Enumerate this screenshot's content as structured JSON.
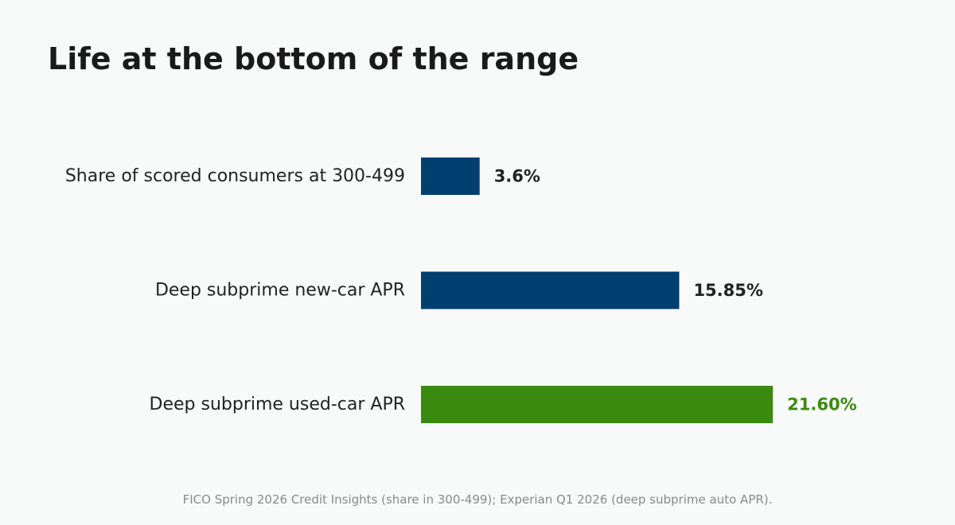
{
  "page": {
    "background": "#f8faf9",
    "source": "FICO Spring 2026 Credit Insights (share in 300-499); Experian Q1 2026 (deep subprime auto APR)."
  },
  "chart_data": {
    "type": "bar",
    "orientation": "horizontal",
    "title": "Life at the bottom of the range",
    "categories": [
      "Share of scored consumers at 300-499",
      "Deep subprime new-car APR",
      "Deep subprime used-car APR"
    ],
    "values": [
      3.6,
      15.85,
      21.6
    ],
    "value_labels": [
      "3.6%",
      "15.85%",
      "21.60%"
    ],
    "colors": [
      "#003f6f",
      "#003f6f",
      "#3b8a10"
    ],
    "xlim": [
      0,
      27
    ],
    "grid": false,
    "axis_visible": false,
    "xlabel": "",
    "ylabel": ""
  }
}
